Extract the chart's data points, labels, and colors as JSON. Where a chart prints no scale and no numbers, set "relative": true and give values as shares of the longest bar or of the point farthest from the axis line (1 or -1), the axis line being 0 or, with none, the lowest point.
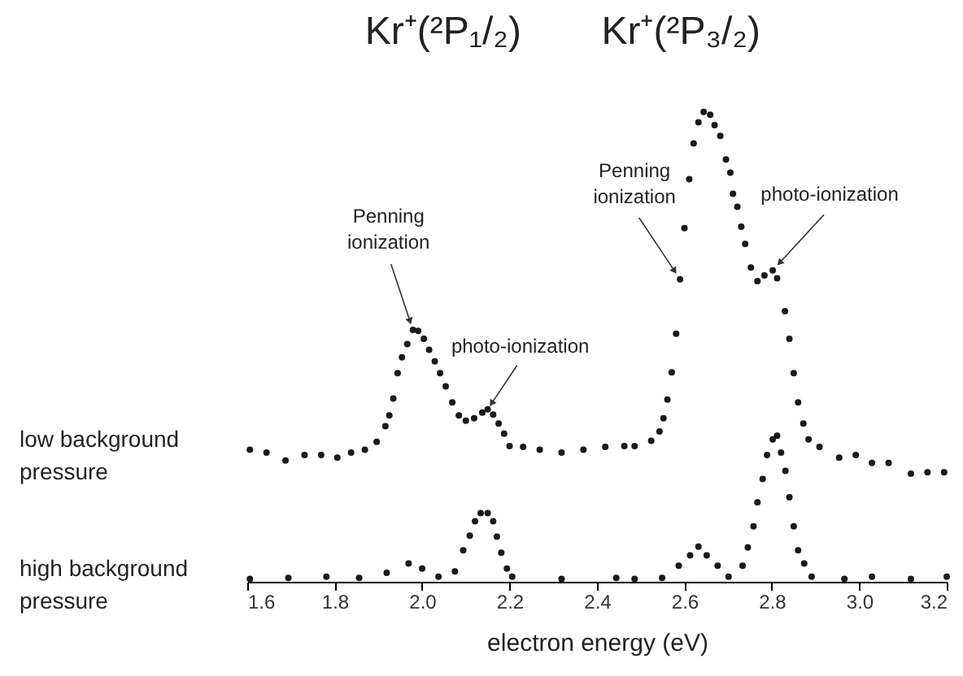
{
  "chart_data": {
    "type": "scatter",
    "relative": true,
    "xlabel": "electron energy (eV)",
    "xlim": [
      1.6,
      3.2
    ],
    "xticks": [
      1.6,
      1.8,
      {
        "value": 2.0,
        "label": "2.0"
      },
      2.2,
      2.4,
      2.6,
      2.8,
      {
        "value": 3.0,
        "label": "3.0"
      },
      3.2
    ],
    "marker": "circle",
    "grid": false,
    "annotations": [
      "Kr⁺(²P₁/₂)",
      "Kr⁺(²P₃/₂)",
      {
        "text": "Penning ionization",
        "x": 1.979,
        "y": 0.536
      },
      {
        "text": "photo-ionization",
        "x": 2.15,
        "y": 0.367
      },
      {
        "text": "Penning ionization",
        "x": 2.59,
        "y": 0.644
      },
      {
        "text": "photo-ionization",
        "x": 2.802,
        "y": 0.663
      }
    ],
    "series": [
      {
        "name": "low background pressure",
        "color": "#1a1a1a",
        "x": [
          1.606,
          1.644,
          1.6875,
          1.731,
          1.769,
          1.806,
          1.8375,
          1.869,
          1.896,
          1.916,
          1.925,
          1.934,
          1.944,
          1.954,
          1.966,
          1.979,
          1.991,
          2.004,
          2.016,
          2.029,
          2.041,
          2.054,
          2.069,
          2.084,
          2.1,
          2.119,
          2.1375,
          2.15,
          2.1625,
          2.175,
          2.1875,
          2.2,
          2.231,
          2.269,
          2.319,
          2.369,
          2.419,
          2.4625,
          2.486,
          2.524,
          2.543,
          2.552,
          2.561,
          2.571,
          2.581,
          2.59,
          2.6,
          2.611,
          2.621,
          2.632,
          2.644,
          2.659,
          2.669,
          2.682,
          2.695,
          2.705,
          2.711,
          2.721,
          2.73,
          2.739,
          2.752,
          2.767,
          2.783,
          2.802,
          2.812,
          2.83,
          2.84,
          2.85,
          2.86,
          2.872,
          2.884,
          2.909,
          2.954,
          2.992,
          3.029,
          3.067,
          3.118,
          3.156,
          3.194
        ],
        "values": [
          0.281,
          0.275,
          0.258,
          0.27,
          0.27,
          0.264,
          0.275,
          0.281,
          0.298,
          0.331,
          0.354,
          0.39,
          0.444,
          0.478,
          0.506,
          0.536,
          0.534,
          0.517,
          0.494,
          0.469,
          0.444,
          0.416,
          0.382,
          0.354,
          0.343,
          0.348,
          0.36,
          0.367,
          0.356,
          0.337,
          0.315,
          0.289,
          0.287,
          0.281,
          0.275,
          0.281,
          0.287,
          0.289,
          0.289,
          0.3,
          0.32,
          0.348,
          0.388,
          0.446,
          0.528,
          0.644,
          0.753,
          0.857,
          0.933,
          0.978,
          1.0,
          0.994,
          0.972,
          0.949,
          0.899,
          0.871,
          0.826,
          0.798,
          0.756,
          0.719,
          0.669,
          0.64,
          0.652,
          0.663,
          0.646,
          0.576,
          0.517,
          0.444,
          0.382,
          0.337,
          0.303,
          0.287,
          0.264,
          0.27,
          0.253,
          0.253,
          0.23,
          0.233,
          0.233
        ]
      },
      {
        "name": "high background pressure",
        "color": "#1a1a1a",
        "x": [
          1.606,
          1.694,
          1.781,
          1.856,
          1.919,
          1.969,
          2.0,
          2.0375,
          2.075,
          2.094,
          2.109,
          2.121,
          2.134,
          2.15,
          2.1625,
          2.171,
          2.181,
          2.194,
          2.206,
          2.319,
          2.444,
          2.486,
          2.549,
          2.587,
          2.613,
          2.632,
          2.651,
          2.676,
          2.701,
          2.733,
          2.745,
          2.758,
          2.767,
          2.779,
          2.789,
          2.802,
          2.812,
          2.821,
          2.831,
          2.84,
          2.85,
          2.86,
          2.874,
          2.891,
          2.966,
          3.029,
          3.118,
          3.2
        ],
        "values": [
          0.006,
          0.008,
          0.011,
          0.008,
          0.019,
          0.039,
          0.028,
          0.011,
          0.022,
          0.067,
          0.098,
          0.129,
          0.146,
          0.146,
          0.129,
          0.096,
          0.062,
          0.028,
          0.011,
          0.006,
          0.008,
          0.006,
          0.008,
          0.034,
          0.056,
          0.075,
          0.056,
          0.034,
          0.011,
          0.034,
          0.073,
          0.118,
          0.169,
          0.219,
          0.27,
          0.303,
          0.311,
          0.275,
          0.236,
          0.18,
          0.118,
          0.067,
          0.039,
          0.011,
          0.006,
          0.011,
          0.006,
          0.011
        ]
      }
    ]
  }
}
